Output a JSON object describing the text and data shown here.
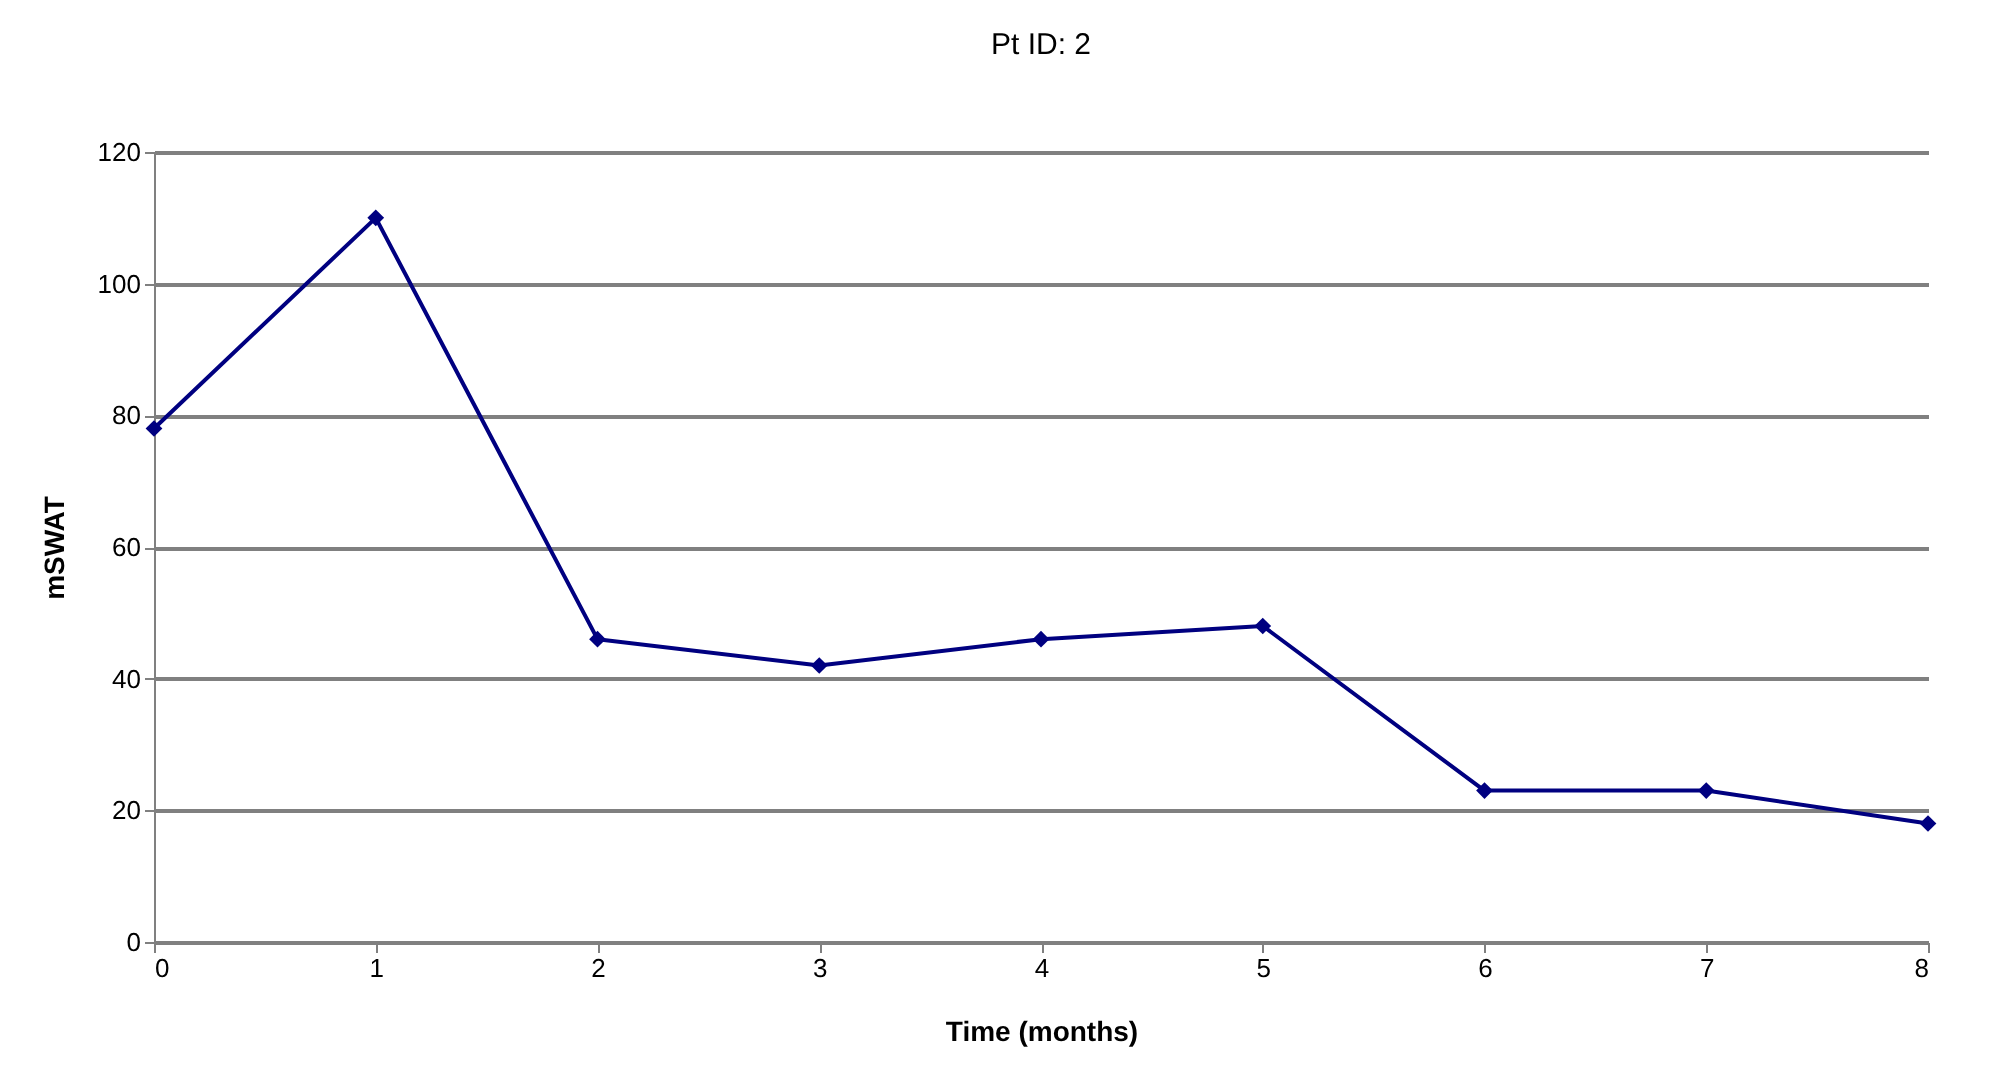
{
  "chart_data": {
    "type": "line",
    "title": "Pt ID: 2",
    "xlabel": "Time (months)",
    "ylabel": "mSWAT",
    "x": [
      0,
      1,
      2,
      3,
      4,
      5,
      6,
      7,
      8
    ],
    "series": [
      {
        "color": "#000080",
        "values": [
          78,
          110,
          46,
          42,
          46,
          48,
          23,
          23,
          18
        ]
      }
    ],
    "xlim": [
      0,
      8
    ],
    "xticks": [
      0,
      1,
      2,
      3,
      4,
      5,
      6,
      7,
      8
    ],
    "ylim": [
      0,
      120
    ],
    "yticks": [
      0,
      20,
      40,
      60,
      80,
      100,
      120
    ],
    "grid": "y",
    "legend": false,
    "marker": "diamond",
    "line_style": "solid"
  }
}
